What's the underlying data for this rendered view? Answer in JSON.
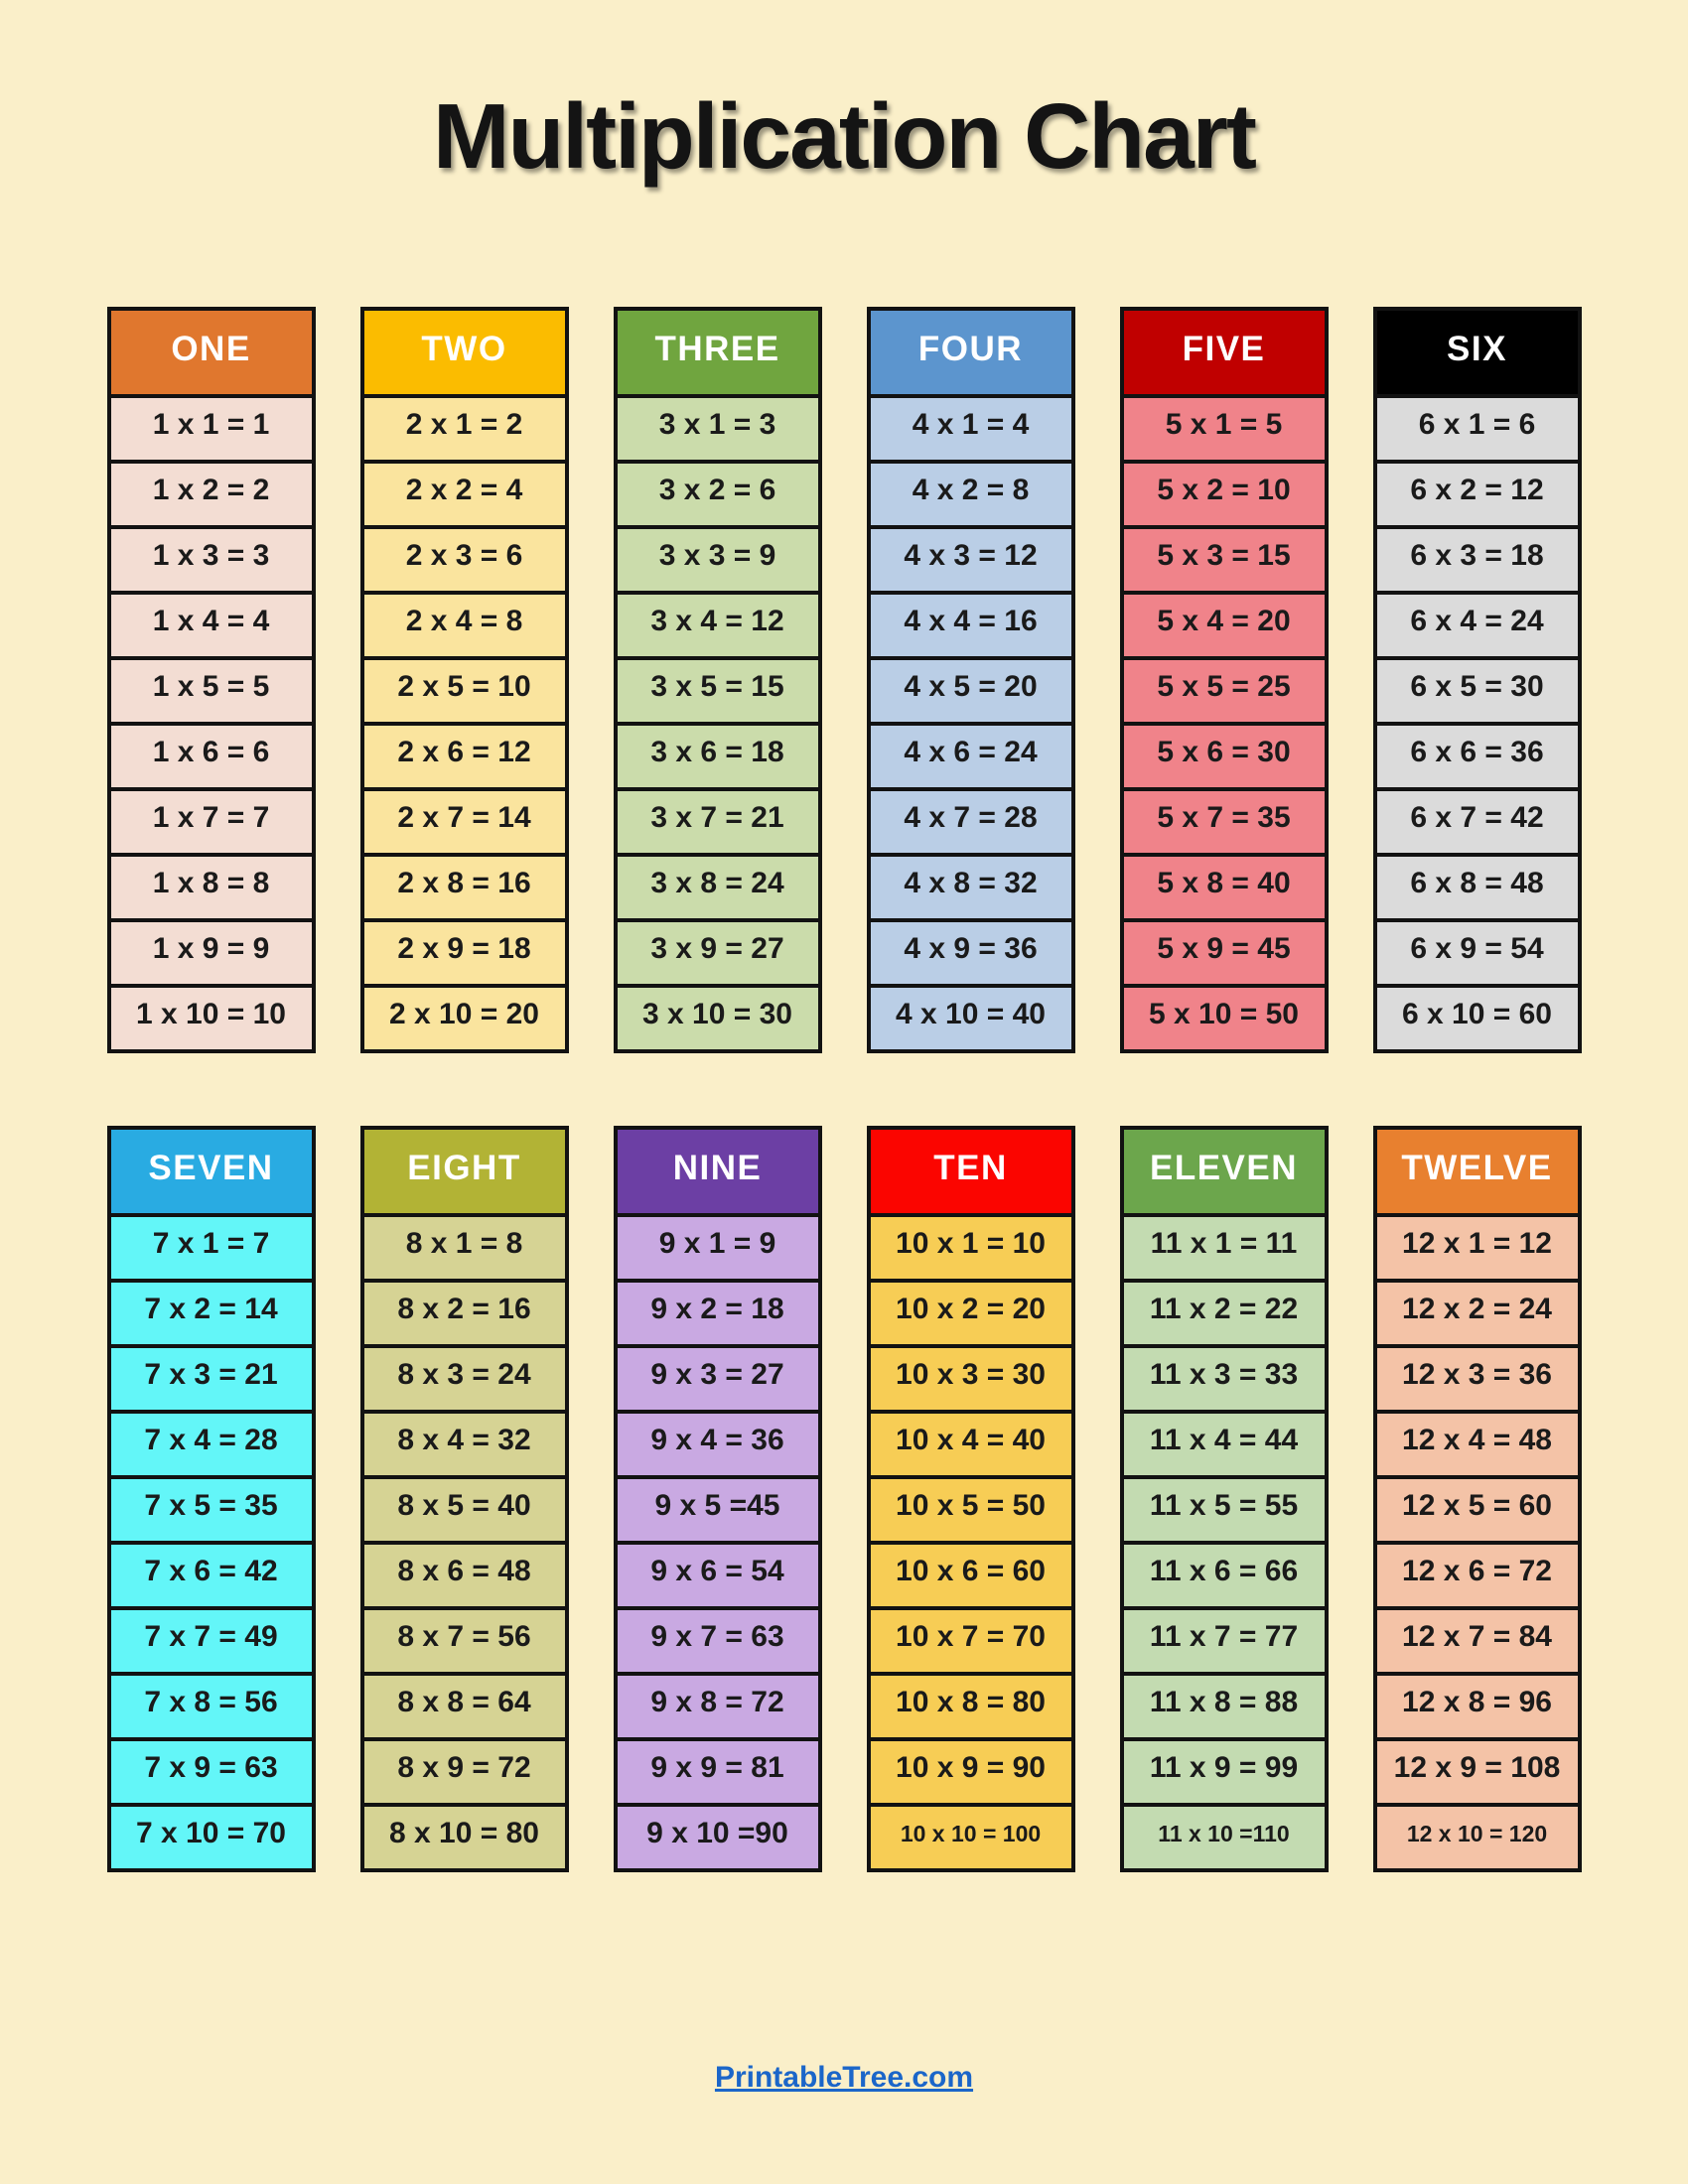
{
  "title": "Multiplication Chart",
  "page_background": "#FAEFC9",
  "footer": {
    "link_text": "PrintableTree.com",
    "color": "#1B66C9"
  },
  "tables": [
    {
      "name": "ONE",
      "header": "ONE",
      "header_bg": "#E0772E",
      "header_text": "#FFFFFF",
      "body_bg": "#F3DDD3",
      "small_rows": [],
      "rows": [
        "1 x 1 = 1",
        "1 x 2 = 2",
        "1 x 3 = 3",
        "1 x 4 = 4",
        "1 x 5 = 5",
        "1 x 6 = 6",
        "1 x 7 = 7",
        "1 x 8 = 8",
        "1 x 9 = 9",
        "1 x 10 = 10"
      ]
    },
    {
      "name": "TWO",
      "header": "TWO",
      "header_bg": "#FBBC00",
      "header_text": "#FFFFFF",
      "body_bg": "#FAE49E",
      "small_rows": [],
      "rows": [
        "2 x 1 = 2",
        "2 x 2 = 4",
        "2 x 3 = 6",
        "2 x 4 = 8",
        "2 x 5 = 10",
        "2 x 6 = 12",
        "2 x 7 = 14",
        "2 x 8 = 16",
        "2 x 9 = 18",
        "2 x 10 = 20"
      ]
    },
    {
      "name": "THREE",
      "header": "THREE",
      "header_bg": "#70A53F",
      "header_text": "#FFFFFF",
      "body_bg": "#CBDCAB",
      "small_rows": [],
      "rows": [
        "3 x 1 = 3",
        "3 x 2 = 6",
        "3 x 3 = 9",
        "3 x 4 = 12",
        "3 x 5 = 15",
        "3 x 6 = 18",
        "3 x 7 = 21",
        "3 x 8 = 24",
        "3 x 9 = 27",
        "3 x 10 = 30"
      ]
    },
    {
      "name": "FOUR",
      "header": "FOUR",
      "header_bg": "#5C95CE",
      "header_text": "#FFFFFF",
      "body_bg": "#BACEE6",
      "small_rows": [],
      "rows": [
        "4 x 1 = 4",
        "4 x 2 = 8",
        "4 x 3 = 12",
        "4 x 4 = 16",
        "4 x 5 = 20",
        "4 x 6 = 24",
        "4 x 7 = 28",
        "4 x 8 = 32",
        "4 x 9 = 36",
        "4 x 10 = 40"
      ]
    },
    {
      "name": "FIVE",
      "header": "FIVE",
      "header_bg": "#C00000",
      "header_text": "#FFFFFF",
      "body_bg": "#F0838A",
      "small_rows": [],
      "rows": [
        "5 x 1 = 5",
        "5 x 2 = 10",
        "5 x 3 = 15",
        "5 x 4 = 20",
        "5 x 5 = 25",
        "5 x 6 = 30",
        "5 x 7 = 35",
        "5 x 8 = 40",
        "5 x 9 = 45",
        "5 x 10 = 50"
      ]
    },
    {
      "name": "SIX",
      "header": "SIX",
      "header_bg": "#000000",
      "header_text": "#FFFFFF",
      "body_bg": "#DBDBDB",
      "small_rows": [],
      "rows": [
        "6 x 1 = 6",
        "6 x 2 = 12",
        "6 x 3 = 18",
        "6 x 4 = 24",
        "6 x 5 = 30",
        "6 x 6 = 36",
        "6 x 7 = 42",
        "6 x 8 = 48",
        "6 x 9 = 54",
        "6 x 10 = 60"
      ]
    },
    {
      "name": "SEVEN",
      "header": "SEVEN",
      "header_bg": "#29ABE2",
      "header_text": "#FFFFFF",
      "body_bg": "#63F6F8",
      "small_rows": [],
      "rows": [
        "7 x 1 = 7",
        "7 x 2 = 14",
        "7 x 3 = 21",
        "7 x 4 = 28",
        "7 x 5 = 35",
        "7 x 6 = 42",
        "7 x 7 = 49",
        "7 x 8 = 56",
        "7 x 9 = 63",
        "7 x 10 = 70"
      ]
    },
    {
      "name": "EIGHT",
      "header": "EIGHT",
      "header_bg": "#B2B335",
      "header_text": "#FFFFFF",
      "body_bg": "#D6D394",
      "small_rows": [],
      "rows": [
        "8 x 1 = 8",
        "8 x 2 = 16",
        "8 x 3 = 24",
        "8 x 4 = 32",
        "8 x 5 = 40",
        "8 x 6 = 48",
        "8 x 7 = 56",
        "8 x 8 = 64",
        "8 x 9 = 72",
        "8 x 10 = 80"
      ]
    },
    {
      "name": "NINE",
      "header": "NINE",
      "header_bg": "#6C3FA4",
      "header_text": "#FFFFFF",
      "body_bg": "#C9A9E2",
      "small_rows": [],
      "rows": [
        "9 x 1 = 9",
        "9 x 2 = 18",
        "9 x 3 = 27",
        "9 x 4 = 36",
        "9 x 5 =45",
        "9 x 6 = 54",
        "9 x 7 = 63",
        "9 x 8 = 72",
        "9 x 9 = 81",
        "9 x 10 =90"
      ]
    },
    {
      "name": "TEN",
      "header": "TEN",
      "header_bg": "#FB0500",
      "header_text": "#FFFFFF",
      "body_bg": "#F7CD55",
      "small_rows": [
        9
      ],
      "rows": [
        "10 x 1 = 10",
        "10 x 2 = 20",
        "10 x 3 = 30",
        "10 x 4 = 40",
        "10 x 5 = 50",
        "10 x 6 = 60",
        "10 x 7 = 70",
        "10 x 8 = 80",
        "10 x 9 = 90",
        "10 x 10 = 100"
      ]
    },
    {
      "name": "ELEVEN",
      "header": "ELEVEN",
      "header_bg": "#6CA64C",
      "header_text": "#FFFFFF",
      "body_bg": "#C3DBB1",
      "small_rows": [
        9
      ],
      "rows": [
        "11 x 1 = 11",
        "11 x 2 = 22",
        "11 x 3 = 33",
        "11 x 4 = 44",
        "11 x 5 = 55",
        "11 x 6 = 66",
        "11 x 7 = 77",
        "11 x 8 = 88",
        "11 x 9 = 99",
        "11 x 10 =110"
      ]
    },
    {
      "name": "TWELVE",
      "header": "TWELVE",
      "header_bg": "#E8802F",
      "header_text": "#FFFFFF",
      "body_bg": "#F4C3A7",
      "small_rows": [
        9
      ],
      "rows": [
        "12 x 1 = 12",
        "12 x 2 = 24",
        "12 x 3 = 36",
        "12 x 4 = 48",
        "12 x 5 = 60",
        "12 x 6 = 72",
        "12 x 7 = 84",
        "12 x 8 = 96",
        "12 x 9 = 108",
        "12 x 10 = 120"
      ]
    }
  ]
}
